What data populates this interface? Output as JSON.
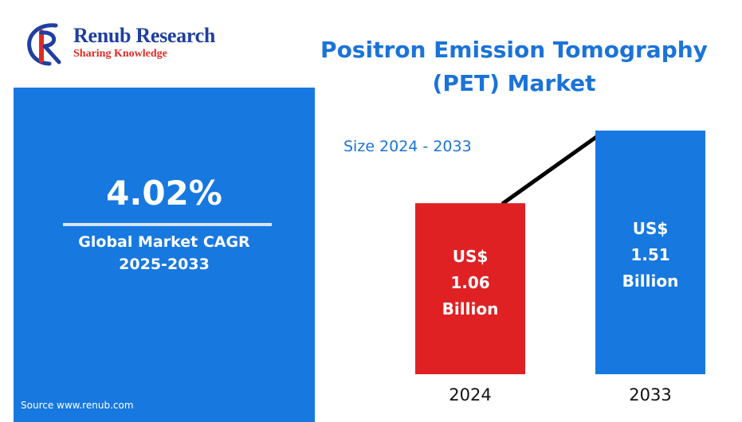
{
  "logo": {
    "name": "Renub Research",
    "tagline": "Sharing Knowledge"
  },
  "title": {
    "line1": "Positron Emission Tomography",
    "line2": "(PET) Market"
  },
  "cagr": {
    "value": "4.02%",
    "label_line1": "Global Market CAGR",
    "label_line2": "2025-2033"
  },
  "source": "Source  www.renub.com",
  "colors": {
    "title": "#1a73d9",
    "panel": "#1778e0",
    "bar_2024": "#e02124",
    "bar_2033": "#1778e0",
    "logo_name": "#1f3fa0",
    "logo_tag": "#e02a25"
  },
  "chart_data": {
    "type": "bar",
    "subtitle": "Size 2024 - 2033",
    "categories": [
      "2024",
      "2033"
    ],
    "values": [
      1.06,
      1.51
    ],
    "bar_labels": [
      [
        "US$",
        "1.06",
        "Billion"
      ],
      [
        "US$",
        "1.51",
        "Billion"
      ]
    ],
    "unit": "US$ Billion",
    "ylim": [
      0,
      1.51
    ],
    "grid": false,
    "legend": "none",
    "trend_line": true
  }
}
